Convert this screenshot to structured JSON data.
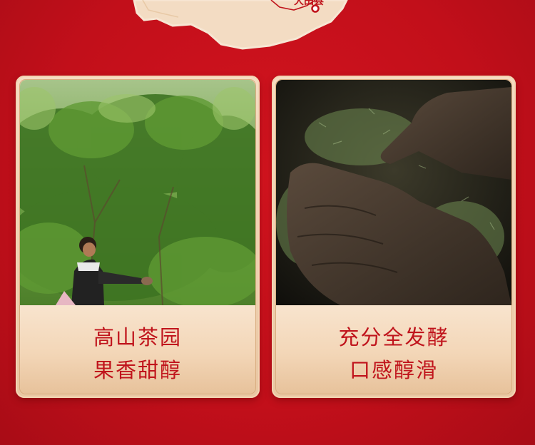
{
  "map": {
    "label": "大田县",
    "marker_color": "#c0141c"
  },
  "cards": [
    {
      "photo": "tea-garden-picker-photo",
      "line1": "高山茶园",
      "line2": "果香甜醇"
    },
    {
      "photo": "hands-tea-leaves-photo",
      "line1": "充分全发酵",
      "line2": "口感醇滑"
    }
  ],
  "colors": {
    "background": "#c8101c",
    "card": "#f3d6b7",
    "text": "#c0141c"
  }
}
